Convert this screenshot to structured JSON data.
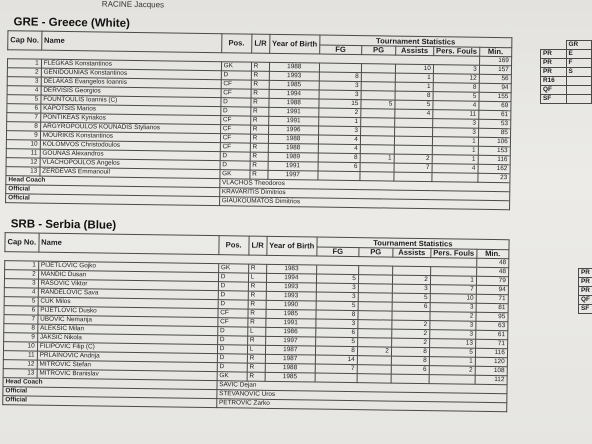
{
  "top_text": "RACINE Jacques",
  "headers": {
    "cap": "Cap No.",
    "name": "Name",
    "pos": "Pos.",
    "lr": "L/R",
    "yob": "Year of Birth",
    "tournament": "Tournament Statistics",
    "fg": "FG",
    "pg": "PG",
    "assists": "Assists",
    "pf": "Pers. Fouls",
    "min": "Min."
  },
  "teams": [
    {
      "title": "GRE - Greece (White)",
      "total_min": "169",
      "players": [
        {
          "cap": "1",
          "name": "FLEGKAS Konstantinos",
          "pos": "GK",
          "lr": "R",
          "yob": "1988",
          "fg": "",
          "pg": "",
          "as": "10",
          "pf": "3",
          "min": "157"
        },
        {
          "cap": "2",
          "name": "GENIDOUNIAS Konstantinos",
          "pos": "D",
          "lr": "R",
          "yob": "1993",
          "fg": "8",
          "pg": "",
          "as": "1",
          "pf": "12",
          "min": "56"
        },
        {
          "cap": "3",
          "name": "DELAKAS Evangelos Ioannis",
          "pos": "CF",
          "lr": "R",
          "yob": "1985",
          "fg": "3",
          "pg": "",
          "as": "1",
          "pf": "8",
          "min": "94"
        },
        {
          "cap": "4",
          "name": "DERVISIS Georgios",
          "pos": "CF",
          "lr": "R",
          "yob": "1994",
          "fg": "3",
          "pg": "",
          "as": "8",
          "pf": "5",
          "min": "155"
        },
        {
          "cap": "5",
          "name": "FOUNTOULIS Ioannis (C)",
          "pos": "D",
          "lr": "R",
          "yob": "1988",
          "fg": "15",
          "pg": "5",
          "as": "5",
          "pf": "4",
          "min": "69"
        },
        {
          "cap": "6",
          "name": "KAPOTSIS Marios",
          "pos": "D",
          "lr": "R",
          "yob": "1991",
          "fg": "2",
          "pg": "",
          "as": "4",
          "pf": "11",
          "min": "61"
        },
        {
          "cap": "7",
          "name": "PONTIKEAS Kyriakos",
          "pos": "CF",
          "lr": "R",
          "yob": "1991",
          "fg": "1",
          "pg": "",
          "as": "",
          "pf": "3",
          "min": "53"
        },
        {
          "cap": "8",
          "name": "ARGYROPOULOS KOUNADIS Stylianos",
          "pos": "CF",
          "lr": "R",
          "yob": "1996",
          "fg": "3",
          "pg": "",
          "as": "",
          "pf": "3",
          "min": "85"
        },
        {
          "cap": "9",
          "name": "MOURIKIS Konstantinos",
          "pos": "CF",
          "lr": "R",
          "yob": "1988",
          "fg": "4",
          "pg": "",
          "as": "",
          "pf": "1",
          "min": "106"
        },
        {
          "cap": "10",
          "name": "KOLOMVOS Christodoulos",
          "pos": "CF",
          "lr": "R",
          "yob": "1988",
          "fg": "4",
          "pg": "",
          "as": "",
          "pf": "1",
          "min": "153"
        },
        {
          "cap": "11",
          "name": "GOUNAS Alexandros",
          "pos": "D",
          "lr": "R",
          "yob": "1989",
          "fg": "8",
          "pg": "1",
          "as": "2",
          "pf": "1",
          "min": "116"
        },
        {
          "cap": "12",
          "name": "VLACHOPOULOS Angelos",
          "pos": "D",
          "lr": "R",
          "yob": "1991",
          "fg": "6",
          "pg": "",
          "as": "7",
          "pf": "4",
          "min": "162"
        },
        {
          "cap": "13",
          "name": "ZERDEVAS Emmanouil",
          "pos": "GK",
          "lr": "R",
          "yob": "1997",
          "fg": "",
          "pg": "",
          "as": "",
          "pf": "",
          "min": "23"
        }
      ],
      "staff": [
        {
          "label": "Head Coach",
          "name": "VLACHOS Theodoros"
        },
        {
          "label": "Official",
          "name": "KRAVARITIS Dimitrios"
        },
        {
          "label": "Official",
          "name": "GIAUKOUMATOS Dimitrios"
        }
      ]
    },
    {
      "title": "SRB - Serbia (Blue)",
      "total_min": "48",
      "players": [
        {
          "cap": "1",
          "name": "PIJETLOVIC Gojko",
          "pos": "GK",
          "lr": "R",
          "yob": "1983",
          "fg": "",
          "pg": "",
          "as": "",
          "pf": "",
          "min": "48"
        },
        {
          "cap": "2",
          "name": "MANDIC Dusan",
          "pos": "D",
          "lr": "L",
          "yob": "1994",
          "fg": "5",
          "pg": "",
          "as": "2",
          "pf": "1",
          "min": "79"
        },
        {
          "cap": "3",
          "name": "RASOVIC Viktor",
          "pos": "D",
          "lr": "R",
          "yob": "1993",
          "fg": "3",
          "pg": "",
          "as": "3",
          "pf": "7",
          "min": "94"
        },
        {
          "cap": "4",
          "name": "RANDELOVIC Sava",
          "pos": "D",
          "lr": "R",
          "yob": "1993",
          "fg": "3",
          "pg": "",
          "as": "5",
          "pf": "10",
          "min": "71"
        },
        {
          "cap": "5",
          "name": "CUK Milos",
          "pos": "D",
          "lr": "R",
          "yob": "1990",
          "fg": "5",
          "pg": "",
          "as": "6",
          "pf": "3",
          "min": "81"
        },
        {
          "cap": "6",
          "name": "PIJETLOVIC Dusko",
          "pos": "CF",
          "lr": "R",
          "yob": "1985",
          "fg": "8",
          "pg": "",
          "as": "",
          "pf": "2",
          "min": "95"
        },
        {
          "cap": "7",
          "name": "UBOVIC Nemanja",
          "pos": "CF",
          "lr": "R",
          "yob": "1991",
          "fg": "3",
          "pg": "",
          "as": "2",
          "pf": "3",
          "min": "63"
        },
        {
          "cap": "8",
          "name": "ALEKSIC Milan",
          "pos": "D",
          "lr": "L",
          "yob": "1986",
          "fg": "6",
          "pg": "",
          "as": "2",
          "pf": "3",
          "min": "61"
        },
        {
          "cap": "9",
          "name": "JAKSIC Nikola",
          "pos": "D",
          "lr": "R",
          "yob": "1997",
          "fg": "5",
          "pg": "",
          "as": "2",
          "pf": "13",
          "min": "71"
        },
        {
          "cap": "10",
          "name": "FILIPOVIC Filip (C)",
          "pos": "D",
          "lr": "L",
          "yob": "1987",
          "fg": "8",
          "pg": "2",
          "as": "8",
          "pf": "5",
          "min": "116"
        },
        {
          "cap": "11",
          "name": "PRLAINOVIC Andrija",
          "pos": "D",
          "lr": "R",
          "yob": "1987",
          "fg": "14",
          "pg": "",
          "as": "8",
          "pf": "1",
          "min": "120"
        },
        {
          "cap": "12",
          "name": "MITROVIC Stefan",
          "pos": "D",
          "lr": "R",
          "yob": "1988",
          "fg": "7",
          "pg": "",
          "as": "6",
          "pf": "2",
          "min": "108"
        },
        {
          "cap": "13",
          "name": "MITROVIC Branislav",
          "pos": "GK",
          "lr": "R",
          "yob": "1985",
          "fg": "",
          "pg": "",
          "as": "",
          "pf": "",
          "min": "112"
        }
      ],
      "staff": [
        {
          "label": "Head Coach",
          "name": "SAVIC Dejan"
        },
        {
          "label": "Official",
          "name": "STEVANOVIC Uros"
        },
        {
          "label": "Official",
          "name": "PETROVIC Zarko"
        }
      ]
    }
  ],
  "side_boxes": [
    {
      "header": "GR",
      "rows": [
        {
          "label": "PR",
          "value": "E"
        },
        {
          "label": "PR",
          "value": "F"
        },
        {
          "label": "PR",
          "value": "S"
        },
        {
          "label": "R16",
          "value": ""
        },
        {
          "label": "QF",
          "value": ""
        },
        {
          "label": "SF",
          "value": ""
        }
      ]
    },
    {
      "header": "",
      "rows": [
        {
          "label": "PR",
          "value": ""
        },
        {
          "label": "PR",
          "value": ""
        },
        {
          "label": "PR",
          "value": ""
        },
        {
          "label": "QF",
          "value": ""
        },
        {
          "label": "SF",
          "value": ""
        }
      ]
    }
  ]
}
